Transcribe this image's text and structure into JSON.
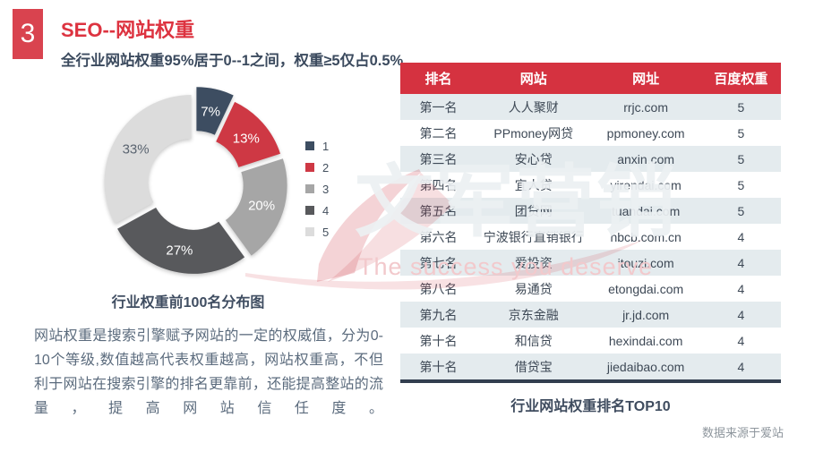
{
  "slide": {
    "number": "3",
    "title": "SEO--网站权重",
    "subtitle": "全行业网站权重95%居于0--1之间，权重≥5仅占0.5%",
    "body_text": "网站权重是搜索引擎赋予网站的一定的权威值，分为0-10个等级,数值越高代表权重越高，网站权重高，不但利于网站在搜索引擎的排名更靠前，还能提高整站的流量，提高网站信任度。",
    "source_note": "数据来源于爱站"
  },
  "chart_data": {
    "type": "pie",
    "subtype": "exploded-donut",
    "title": "行业权重前100名分布图",
    "categories": [
      "1",
      "2",
      "3",
      "4",
      "5"
    ],
    "values": [
      7,
      13,
      20,
      27,
      33
    ],
    "labels": [
      "7%",
      "13%",
      "20%",
      "27%",
      "33%"
    ],
    "colors": [
      "#3d4d61",
      "#ce3844",
      "#a6a6a6",
      "#58595c",
      "#dcdcdc"
    ],
    "label_colors": [
      "#ffffff",
      "#ffffff",
      "#ffffff",
      "#ffffff",
      "#5a6470"
    ],
    "legend_position": "right",
    "start_angle_deg": 0,
    "direction": "clockwise",
    "xlabel": "",
    "ylabel": ""
  },
  "table": {
    "caption": "行业网站权重排名TOP10",
    "columns": [
      "排名",
      "网站",
      "网址",
      "百度权重"
    ],
    "rows": [
      [
        "第一名",
        "人人聚财",
        "rrjc.com",
        "5"
      ],
      [
        "第二名",
        "PPmoney网贷",
        "ppmoney.com",
        "5"
      ],
      [
        "第三名",
        "安心贷",
        "anxin.com",
        "5"
      ],
      [
        "第四名",
        "宜人贷",
        "yirendai.com",
        "5"
      ],
      [
        "第五名",
        "团贷网",
        "tuandai.com",
        "5"
      ],
      [
        "第六名",
        "宁波银行直销银行",
        "nbcb.com.cn",
        "4"
      ],
      [
        "第七名",
        "爱投资",
        "itouzi.com",
        "4"
      ],
      [
        "第八名",
        "易通贷",
        "etongdai.com",
        "4"
      ],
      [
        "第九名",
        "京东金融",
        "jr.jd.com",
        "4"
      ],
      [
        "第十名",
        "和信贷",
        "hexindai.com",
        "4"
      ],
      [
        "第十名",
        "借贷宝",
        "jiedaibao.com",
        "4"
      ]
    ]
  },
  "watermark": {
    "text": "文军营销",
    "tagline": "The success you deserve"
  },
  "colors": {
    "accent_red": "#d53240",
    "badge_red": "#d9434f",
    "title_red": "#dd3340",
    "dark_navy": "#3b4a5e",
    "row_alt": "#e4ebee",
    "table_border": "#323e4f"
  }
}
